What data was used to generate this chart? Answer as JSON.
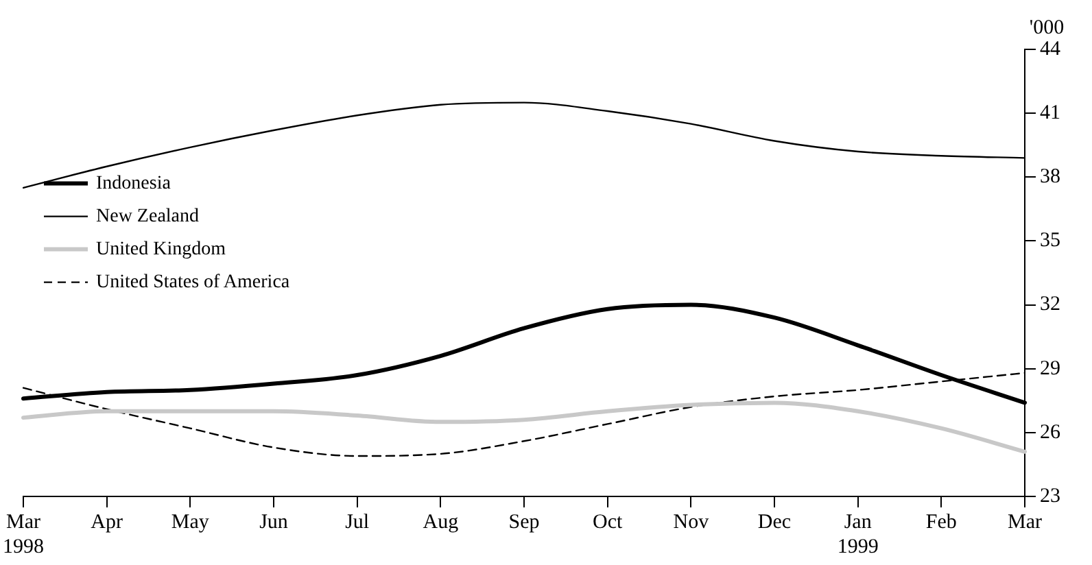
{
  "chart_data": {
    "type": "line",
    "ylabel": "'000",
    "categories": [
      "Mar\n1998",
      "Apr",
      "May",
      "Jun",
      "Jul",
      "Aug",
      "Sep",
      "Oct",
      "Nov",
      "Dec",
      "Jan\n1999",
      "Feb",
      "Mar"
    ],
    "series": [
      {
        "name": "Indonesia",
        "color": "#000000",
        "values": [
          27.6,
          27.9,
          28.0,
          28.3,
          28.7,
          29.6,
          30.9,
          31.8,
          32.0,
          31.4,
          30.1,
          28.7,
          27.4
        ]
      },
      {
        "name": "New Zealand",
        "color": "#000000",
        "values": [
          37.5,
          38.5,
          39.4,
          40.2,
          40.9,
          41.4,
          41.5,
          41.1,
          40.5,
          39.7,
          39.2,
          39.0,
          38.9
        ]
      },
      {
        "name": "United Kingdom",
        "color": "#c8c8c8",
        "values": [
          26.7,
          27.0,
          27.0,
          27.0,
          26.8,
          26.5,
          26.6,
          27.0,
          27.3,
          27.4,
          27.0,
          26.2,
          25.1
        ]
      },
      {
        "name": "United States of America",
        "color": "#000000",
        "line_style": "dashed",
        "values": [
          28.1,
          27.1,
          26.2,
          25.3,
          24.9,
          25.0,
          25.6,
          26.4,
          27.2,
          27.7,
          28.0,
          28.4,
          28.8
        ]
      }
    ],
    "ylim": [
      23,
      44
    ],
    "yticks": [
      23,
      26,
      29,
      32,
      35,
      38,
      41,
      44
    ],
    "grid": false,
    "legend": "left",
    "marker": "none",
    "line_style": "solid"
  }
}
